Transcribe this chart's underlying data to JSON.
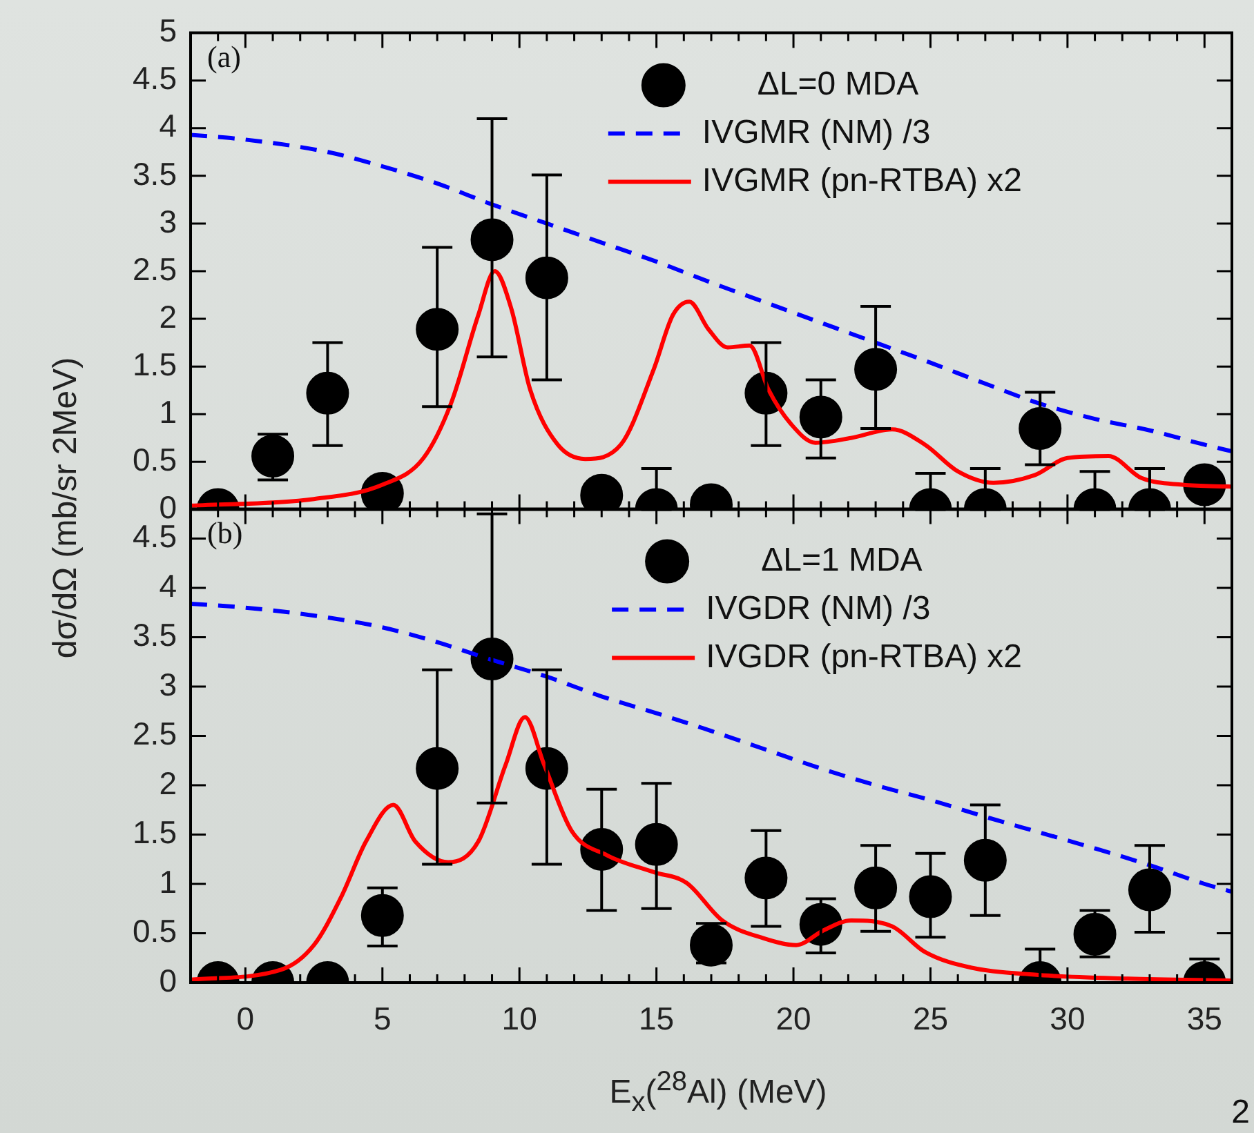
{
  "chart_data": [
    {
      "type": "scatter",
      "ylabel": "dσ/dΩ (mb/sr 2MeV)",
      "annotations": [
        "(a)"
      ],
      "xlim": [
        -2,
        36
      ],
      "xticks": [
        {
          "value": -1,
          "label": null
        },
        0,
        {
          "value": 1,
          "label": null
        },
        {
          "value": 2,
          "label": null
        },
        {
          "value": 3,
          "label": null
        },
        {
          "value": 4,
          "label": null
        },
        5,
        {
          "value": 6,
          "label": null
        },
        {
          "value": 7,
          "label": null
        },
        {
          "value": 8,
          "label": null
        },
        {
          "value": 9,
          "label": null
        },
        10,
        {
          "value": 11,
          "label": null
        },
        {
          "value": 12,
          "label": null
        },
        {
          "value": 13,
          "label": null
        },
        {
          "value": 14,
          "label": null
        },
        15,
        {
          "value": 16,
          "label": null
        },
        {
          "value": 17,
          "label": null
        },
        {
          "value": 18,
          "label": null
        },
        {
          "value": 19,
          "label": null
        },
        20,
        {
          "value": 21,
          "label": null
        },
        {
          "value": 22,
          "label": null
        },
        {
          "value": 23,
          "label": null
        },
        {
          "value": 24,
          "label": null
        },
        25,
        {
          "value": 26,
          "label": null
        },
        {
          "value": 27,
          "label": null
        },
        {
          "value": 28,
          "label": null
        },
        {
          "value": 29,
          "label": null
        },
        30,
        {
          "value": 31,
          "label": null
        },
        {
          "value": 32,
          "label": null
        },
        {
          "value": 33,
          "label": null
        },
        {
          "value": 34,
          "label": null
        },
        35
      ],
      "ylim": [
        0,
        5
      ],
      "yticks": [
        0,
        0.5,
        1,
        1.5,
        2,
        2.5,
        3,
        3.5,
        4,
        4.5,
        5
      ],
      "grid": false,
      "legend": "top right",
      "tick_labels": "y",
      "series": [
        {
          "name": "ΔL=0 MDA",
          "type": "scatter",
          "color": "#000000",
          "marker": "circle",
          "x": [
            -1,
            1,
            3,
            5,
            7,
            9,
            11,
            13,
            15,
            17,
            19,
            21,
            23,
            25,
            27,
            29,
            31,
            33,
            35
          ],
          "values": [
            0,
            0.56,
            1.22,
            0.17,
            1.89,
            2.83,
            2.43,
            0.15,
            0,
            0.05,
            1.22,
            0.97,
            1.47,
            0,
            0,
            0.85,
            0,
            0,
            0.26
          ],
          "errors": [
            null,
            [
              0.31,
              0.79
            ],
            [
              0.67,
              1.75
            ],
            null,
            [
              1.08,
              2.75
            ],
            [
              1.6,
              4.1
            ],
            [
              1.36,
              3.51
            ],
            null,
            [
              0,
              0.43
            ],
            null,
            [
              0.67,
              1.75
            ],
            [
              0.54,
              1.36
            ],
            [
              0.85,
              2.13
            ],
            [
              0,
              0.38
            ],
            [
              0,
              0.43
            ],
            [
              0.47,
              1.23
            ],
            [
              0,
              0.4
            ],
            [
              0,
              0.43
            ],
            null
          ]
        },
        {
          "name": "IVGMR (NM) /3",
          "type": "line",
          "color": "#0000ff",
          "marker": "none",
          "line_style": "dashed",
          "x": [
            -2,
            0,
            3,
            5,
            7,
            9,
            11,
            13,
            15,
            17,
            19,
            21,
            23,
            25,
            27,
            29,
            31,
            33,
            35,
            36
          ],
          "values": [
            3.93,
            3.88,
            3.75,
            3.6,
            3.42,
            3.2,
            3.0,
            2.8,
            2.6,
            2.38,
            2.17,
            1.96,
            1.75,
            1.54,
            1.32,
            1.11,
            0.95,
            0.83,
            0.68,
            0.61
          ]
        },
        {
          "name": "IVGMR (pn-RTBA) x2",
          "type": "line",
          "color": "#ff0000",
          "marker": "none",
          "line_style": "solid",
          "x": [
            -2,
            2.5,
            5,
            6.5,
            7.5,
            8.5,
            9.1,
            9.7,
            10.4,
            11.4,
            12.4,
            13.7,
            14.9,
            15.6,
            16.2,
            16.9,
            17.6,
            18.4,
            19.1,
            19.9,
            20.8,
            22.1,
            23.6,
            24.8,
            26,
            27.3,
            28.8,
            30,
            31.5,
            32.7,
            34.2,
            36
          ],
          "values": [
            0.04,
            0.11,
            0.26,
            0.54,
            1.11,
            2.04,
            2.5,
            2.11,
            1.25,
            0.68,
            0.53,
            0.68,
            1.47,
            2.04,
            2.18,
            1.89,
            1.7,
            1.72,
            1.25,
            0.9,
            0.7,
            0.75,
            0.84,
            0.68,
            0.4,
            0.28,
            0.36,
            0.54,
            0.56,
            0.33,
            0.26,
            0.24
          ]
        }
      ]
    },
    {
      "type": "scatter",
      "xlabel": "E$_{x}$($^{28}$Al) (MeV)",
      "annotations": [
        "(b)",
        "2"
      ],
      "xlim": [
        -2,
        36
      ],
      "xticks": [
        {
          "value": -1,
          "label": null
        },
        0,
        {
          "value": 1,
          "label": null
        },
        {
          "value": 2,
          "label": null
        },
        {
          "value": 3,
          "label": null
        },
        {
          "value": 4,
          "label": null
        },
        5,
        {
          "value": 6,
          "label": null
        },
        {
          "value": 7,
          "label": null
        },
        {
          "value": 8,
          "label": null
        },
        {
          "value": 9,
          "label": null
        },
        10,
        {
          "value": 11,
          "label": null
        },
        {
          "value": 12,
          "label": null
        },
        {
          "value": 13,
          "label": null
        },
        {
          "value": 14,
          "label": null
        },
        15,
        {
          "value": 16,
          "label": null
        },
        {
          "value": 17,
          "label": null
        },
        {
          "value": 18,
          "label": null
        },
        {
          "value": 19,
          "label": null
        },
        20,
        {
          "value": 21,
          "label": null
        },
        {
          "value": 22,
          "label": null
        },
        {
          "value": 23,
          "label": null
        },
        {
          "value": 24,
          "label": null
        },
        25,
        {
          "value": 26,
          "label": null
        },
        {
          "value": 27,
          "label": null
        },
        {
          "value": 28,
          "label": null
        },
        {
          "value": 29,
          "label": null
        },
        30,
        {
          "value": 31,
          "label": null
        },
        {
          "value": 32,
          "label": null
        },
        {
          "value": 33,
          "label": null
        },
        {
          "value": 34,
          "label": null
        },
        35
      ],
      "ylim": [
        0,
        4.8
      ],
      "yticks": [
        0,
        0.5,
        1,
        1.5,
        2,
        2.5,
        3,
        3.5,
        4,
        4.5
      ],
      "grid": false,
      "legend": "top right",
      "series": [
        {
          "name": "ΔL=1 MDA",
          "type": "scatter",
          "color": "#000000",
          "marker": "circle",
          "x": [
            -1,
            1,
            3,
            5,
            7,
            9,
            11,
            13,
            15,
            17,
            19,
            21,
            23,
            25,
            27,
            29,
            31,
            33,
            35
          ],
          "values": [
            0,
            0,
            0,
            0.68,
            2.17,
            3.28,
            2.17,
            1.35,
            1.4,
            0.38,
            1.06,
            0.59,
            0.96,
            0.87,
            1.24,
            0,
            0.49,
            0.94,
            0
          ],
          "errors": [
            null,
            null,
            null,
            [
              0.37,
              0.96
            ],
            [
              1.2,
              3.17
            ],
            [
              1.82,
              4.75
            ],
            [
              1.2,
              3.17
            ],
            [
              0.73,
              1.96
            ],
            [
              0.75,
              2.02
            ],
            [
              0.2,
              0.6
            ],
            [
              0.57,
              1.54
            ],
            [
              0.3,
              0.85
            ],
            [
              0.52,
              1.39
            ],
            [
              0.46,
              1.31
            ],
            [
              0.68,
              1.8
            ],
            [
              0,
              0.34
            ],
            [
              0.26,
              0.73
            ],
            [
              0.51,
              1.39
            ],
            [
              0,
              0.24
            ]
          ]
        },
        {
          "name": "IVGDR (NM) /3",
          "type": "line",
          "color": "#0000ff",
          "marker": "none",
          "line_style": "dashed",
          "x": [
            -2,
            0,
            3,
            5,
            7,
            9,
            11,
            13,
            15,
            17,
            19,
            21,
            23,
            25,
            27,
            29,
            31,
            33,
            35,
            36
          ],
          "values": [
            3.84,
            3.8,
            3.7,
            3.6,
            3.45,
            3.27,
            3.1,
            2.9,
            2.73,
            2.55,
            2.36,
            2.17,
            2.0,
            1.85,
            1.68,
            1.52,
            1.36,
            1.19,
            1.0,
            0.92
          ]
        },
        {
          "name": "IVGDR (pn-RTBA) x2",
          "type": "line",
          "color": "#ff0000",
          "marker": "none",
          "line_style": "solid",
          "x": [
            -2,
            1.3,
            2.5,
            3.5,
            4.4,
            5.4,
            6.2,
            7.4,
            8.5,
            9.5,
            10.2,
            10.9,
            11.9,
            13.2,
            14.9,
            16.1,
            17.4,
            18.9,
            20.1,
            21.1,
            22.1,
            23.6,
            24.8,
            26.5,
            28.8,
            32.2,
            36
          ],
          "values": [
            0.03,
            0.13,
            0.38,
            0.87,
            1.43,
            1.8,
            1.43,
            1.22,
            1.43,
            2.21,
            2.69,
            2.21,
            1.54,
            1.29,
            1.12,
            1.01,
            0.63,
            0.45,
            0.38,
            0.53,
            0.63,
            0.57,
            0.31,
            0.15,
            0.08,
            0.04,
            0.02
          ]
        }
      ]
    }
  ]
}
